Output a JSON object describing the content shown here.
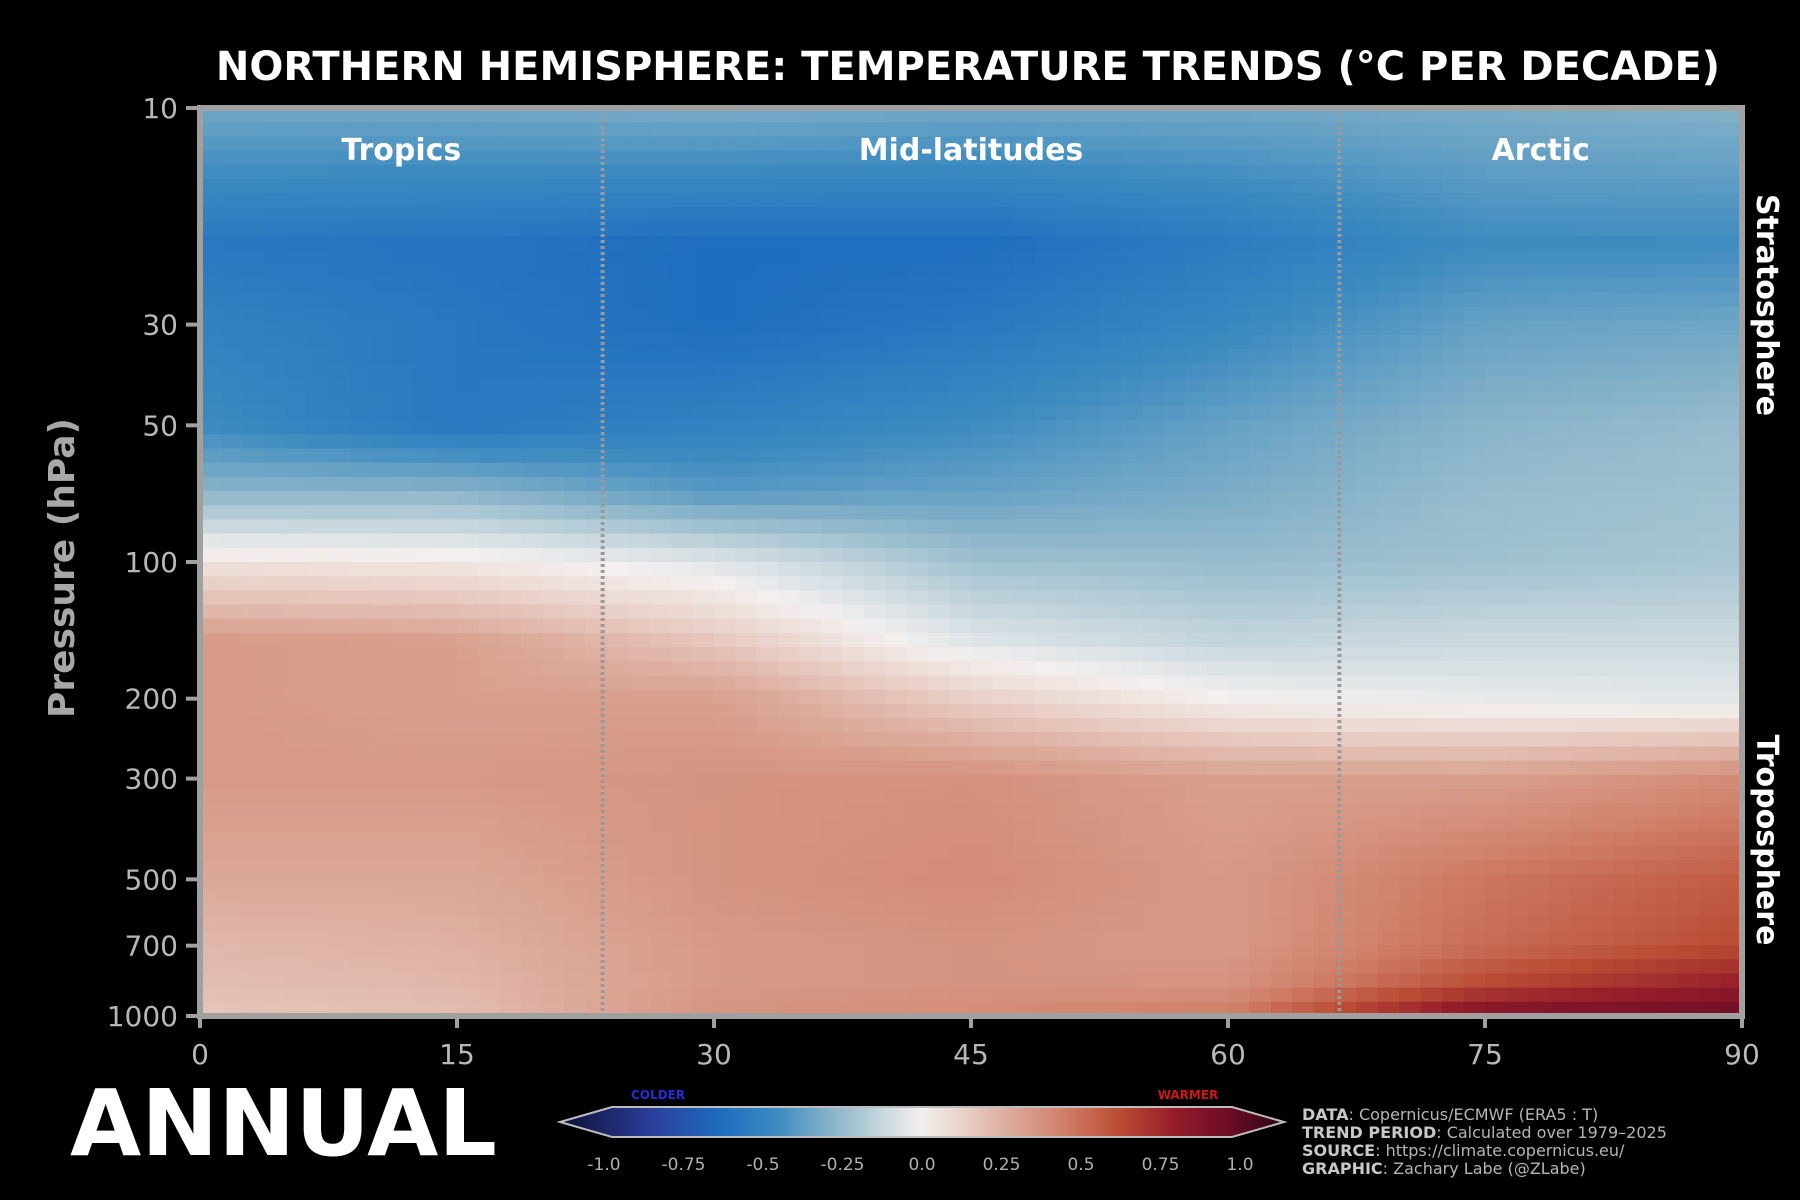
{
  "chart_data": {
    "type": "heatmap",
    "title": "NORTHERN HEMISPHERE: TEMPERATURE TRENDS (°C PER DECADE)",
    "ylabel": "Pressure (hPa)",
    "xlabel": "",
    "x_ticks": [
      "0",
      "15",
      "30",
      "45",
      "60",
      "75",
      "90"
    ],
    "y_ticks": [
      "10",
      "30",
      "50",
      "100",
      "200",
      "300",
      "500",
      "700",
      "1000"
    ],
    "xlim": [
      0,
      90
    ],
    "ylim": [
      1000,
      10
    ],
    "y_scale": "log",
    "y_inverted": true,
    "x_dims": [
      0,
      15,
      30,
      45,
      60,
      75,
      90
    ],
    "y_dims": [
      10,
      20,
      30,
      50,
      70,
      100,
      150,
      200,
      300,
      500,
      700,
      850,
      1000
    ],
    "values": [
      [
        -0.3,
        -0.3,
        -0.28,
        -0.3,
        -0.3,
        -0.28,
        -0.26
      ],
      [
        -0.5,
        -0.52,
        -0.55,
        -0.55,
        -0.48,
        -0.4,
        -0.4
      ],
      [
        -0.45,
        -0.5,
        -0.55,
        -0.5,
        -0.42,
        -0.32,
        -0.3
      ],
      [
        -0.4,
        -0.5,
        -0.45,
        -0.4,
        -0.32,
        -0.25,
        -0.22
      ],
      [
        -0.25,
        -0.25,
        -0.35,
        -0.32,
        -0.28,
        -0.22,
        -0.2
      ],
      [
        0.05,
        0.03,
        -0.05,
        -0.2,
        -0.22,
        -0.2,
        -0.18
      ],
      [
        0.3,
        0.28,
        0.15,
        -0.05,
        -0.12,
        -0.1,
        -0.1
      ],
      [
        0.3,
        0.28,
        0.28,
        0.12,
        0.0,
        -0.03,
        -0.04
      ],
      [
        0.3,
        0.3,
        0.32,
        0.33,
        0.28,
        0.28,
        0.35
      ],
      [
        0.25,
        0.25,
        0.32,
        0.35,
        0.3,
        0.42,
        0.5
      ],
      [
        0.2,
        0.22,
        0.3,
        0.32,
        0.3,
        0.45,
        0.55
      ],
      [
        0.18,
        0.2,
        0.3,
        0.32,
        0.32,
        0.55,
        0.7
      ],
      [
        0.15,
        0.18,
        0.32,
        0.35,
        0.4,
        0.8,
        0.85
      ]
    ],
    "region_dividers": [
      23.5,
      66.5
    ],
    "regions": [
      "Tropics",
      "Mid-latitudes",
      "Arctic"
    ],
    "layers": [
      "Stratosphere",
      "Troposphere"
    ],
    "colorbar": {
      "ticks": [
        "-1.0",
        "-0.75",
        "-0.5",
        "-0.25",
        "0.0",
        "0.25",
        "0.5",
        "0.75",
        "1.0"
      ],
      "range": [
        -1.0,
        1.0
      ],
      "low_label": "COLDER",
      "high_label": "WARMER"
    },
    "colormap": [
      [
        -1.0,
        "#0d0f33"
      ],
      [
        -0.75,
        "#2a3e9a"
      ],
      [
        -0.55,
        "#1e6ec0"
      ],
      [
        -0.4,
        "#3d8bc0"
      ],
      [
        -0.25,
        "#89b4c9"
      ],
      [
        -0.12,
        "#c4d5dc"
      ],
      [
        0.0,
        "#f3f0ef"
      ],
      [
        0.12,
        "#e9cfc6"
      ],
      [
        0.25,
        "#dba898"
      ],
      [
        0.4,
        "#cf7d66"
      ],
      [
        0.55,
        "#b94a33"
      ],
      [
        0.7,
        "#951c2a"
      ],
      [
        0.85,
        "#6b0d25"
      ],
      [
        1.0,
        "#2a0712"
      ]
    ],
    "legend": "bottom-center"
  },
  "season": "ANNUAL",
  "credits": [
    {
      "key": "DATA",
      "text": ": Copernicus/ECMWF (ERA5 : T)"
    },
    {
      "key": "TREND PERIOD",
      "text": ": Calculated over 1979–2025"
    },
    {
      "key": "SOURCE",
      "text": ": https://climate.copernicus.eu/"
    },
    {
      "key": "GRAPHIC",
      "text": ": Zachary Labe (@ZLabe)"
    }
  ]
}
